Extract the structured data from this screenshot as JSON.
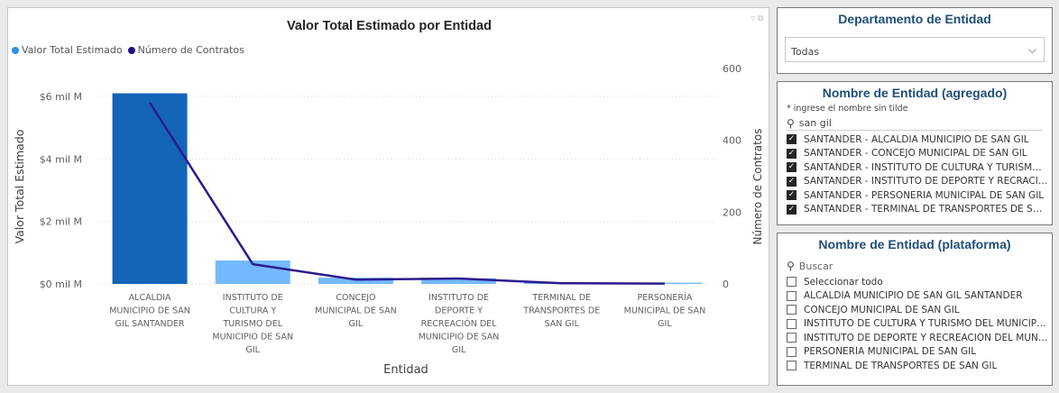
{
  "chart_data": {
    "type": "bar+line",
    "title": "Valor Total Estimado por Entidad",
    "xlabel": "Entidad",
    "ylabel": "Valor Total Estimado",
    "y2label": "Número de Contratos",
    "ylim": [
      0,
      7.3
    ],
    "y2lim": [
      0,
      640
    ],
    "yticks": [
      "$0 mil M",
      "$2 mil M",
      "$4 mil M",
      "$6 mil M"
    ],
    "ytick_values": [
      0,
      2,
      4,
      6
    ],
    "y2ticks": [
      "0",
      "200",
      "400",
      "600"
    ],
    "y2tick_values": [
      0,
      200,
      400,
      600
    ],
    "categories": [
      [
        "ALCALDIA",
        "MUNICIPIO DE SAN",
        "GIL SANTANDER"
      ],
      [
        "INSTITUTO DE",
        "CULTURA Y",
        "TURISMO DEL",
        "MUNICIPIO DE SAN",
        "GIL"
      ],
      [
        "CONCEJO",
        "MUNICIPAL DE SAN",
        "GIL"
      ],
      [
        "INSTITUTO DE",
        "DEPORTE Y",
        "RECREACIÓN DEL",
        "MUNICIPIO DE SAN",
        "GIL"
      ],
      [
        "TERMINAL DE",
        "TRANSPORTES DE",
        "SAN GIL"
      ],
      [
        "PERSONERÍA",
        "MUNICIPAL DE SAN",
        "GIL"
      ]
    ],
    "series": [
      {
        "name": "Valor Total Estimado",
        "type": "bar",
        "axis": "left",
        "values": [
          6.1,
          0.75,
          0.2,
          0.18,
          0.05,
          0.04
        ]
      },
      {
        "name": "Número de Contratos",
        "type": "line",
        "axis": "right",
        "values": [
          505,
          55,
          12,
          15,
          2,
          1
        ]
      }
    ],
    "colors": {
      "highlight_bar": "#1464b8",
      "bar": "#74b9ff",
      "line": "#2b1b8e",
      "legend_bar": "#2a91e8",
      "legend_line": "#1f1183"
    },
    "legend_position": "top-left",
    "grid": true
  },
  "slicers": {
    "departamento": {
      "title": "Departamento de Entidad",
      "selected": "Todas"
    },
    "agregado": {
      "title": "Nombre de Entidad (agregado)",
      "hint": "* ingrese el nombre sin tilde",
      "search_value": "san gil",
      "items": [
        "SANTANDER - ALCALDIA MUNICIPIO DE SAN GIL",
        "SANTANDER - CONCEJO MUNICIPAL DE SAN GIL",
        "SANTANDER - INSTITUTO DE CULTURA Y TURISMO ...",
        "SANTANDER - INSTITUTO DE DEPORTE Y RECRACIO...",
        "SANTANDER - PERSONERIA MUNICIPAL DE SAN GIL",
        "SANTANDER - TERMINAL DE TRANSPORTES DE SAN..."
      ]
    },
    "plataforma": {
      "title": "Nombre de Entidad (plataforma)",
      "search_placeholder": "Buscar",
      "items": [
        "Seleccionar todo",
        "ALCALDIA MUNICIPIO DE SAN GIL SANTANDER",
        "CONCEJO MUNICIPAL DE SAN GIL",
        "INSTITUTO DE CULTURA Y TURISMO DEL MUNICIPI...",
        "INSTITUTO DE DEPORTE Y RECREACIÓN DEL MUNIC...",
        "PERSONERÍA MUNICIPAL DE SAN GIL",
        "TERMINAL DE TRANSPORTES DE SAN GIL"
      ]
    }
  }
}
